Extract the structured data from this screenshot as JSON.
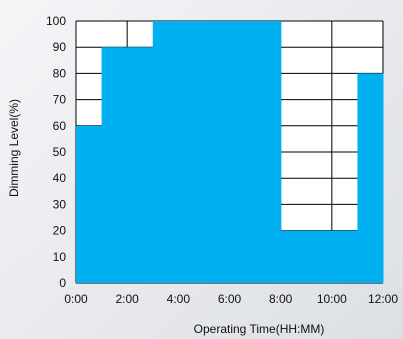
{
  "chart_data": {
    "type": "area",
    "step": true,
    "xlabel": "Operating Time(HH:MM)",
    "ylabel": "Dimming Level(%)",
    "x_tick_labels": [
      "0:00",
      "2:00",
      "4:00",
      "6:00",
      "8:00",
      "10:00",
      "12:00"
    ],
    "y_tick_labels": [
      "0",
      "10",
      "20",
      "30",
      "40",
      "50",
      "60",
      "70",
      "80",
      "90",
      "100"
    ],
    "xlim": [
      0,
      12
    ],
    "ylim": [
      0,
      100
    ],
    "grid": true,
    "fill_color": "#00b0f0",
    "series": [
      {
        "x": [
          0,
          1,
          3,
          8,
          11,
          12
        ],
        "values": [
          60,
          90,
          100,
          20,
          80,
          80
        ]
      }
    ]
  }
}
